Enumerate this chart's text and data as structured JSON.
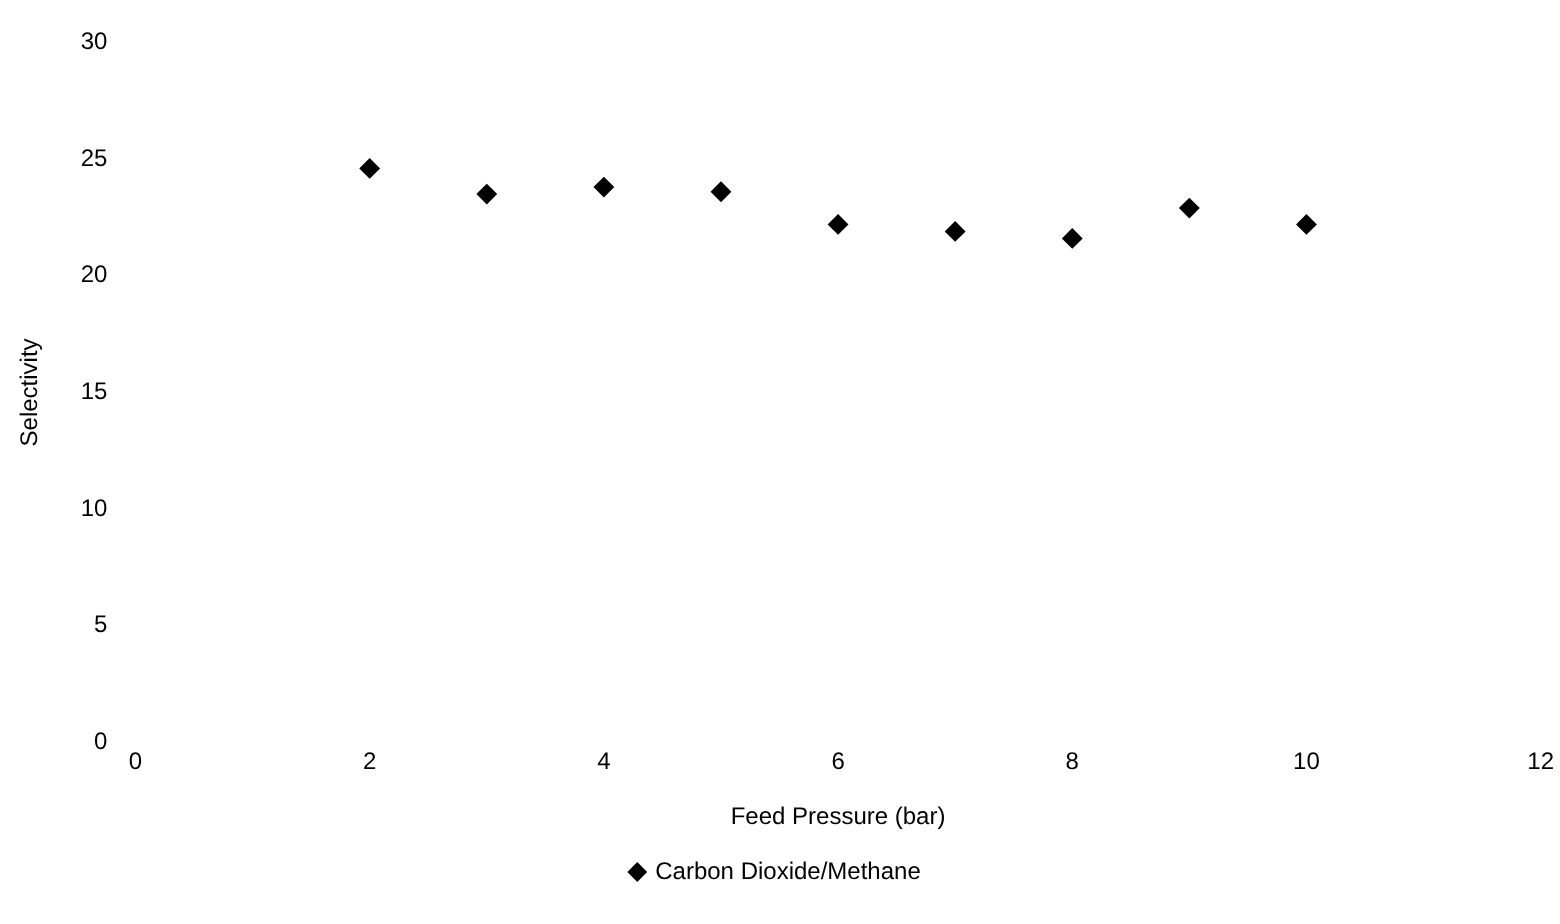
{
  "chart_data": {
    "type": "scatter",
    "xlabel": "Feed Pressure (bar)",
    "ylabel": "Selectivity",
    "series": [
      {
        "name": "Carbon Dioxide/Methane",
        "color": "#000000",
        "x": [
          2,
          3,
          4,
          5,
          6,
          7,
          8,
          9,
          10
        ],
        "values": [
          24.6,
          23.5,
          23.8,
          23.6,
          22.2,
          21.9,
          21.6,
          22.9,
          22.2
        ]
      }
    ],
    "xlim": [
      0,
      12
    ],
    "xticks": [
      0,
      2,
      4,
      6,
      8,
      10,
      12
    ],
    "ylim": [
      0,
      30
    ],
    "yticks": [
      0,
      5,
      10,
      15,
      20,
      25,
      30
    ],
    "grid": false,
    "legend": "bottom",
    "marker": "diamond"
  }
}
